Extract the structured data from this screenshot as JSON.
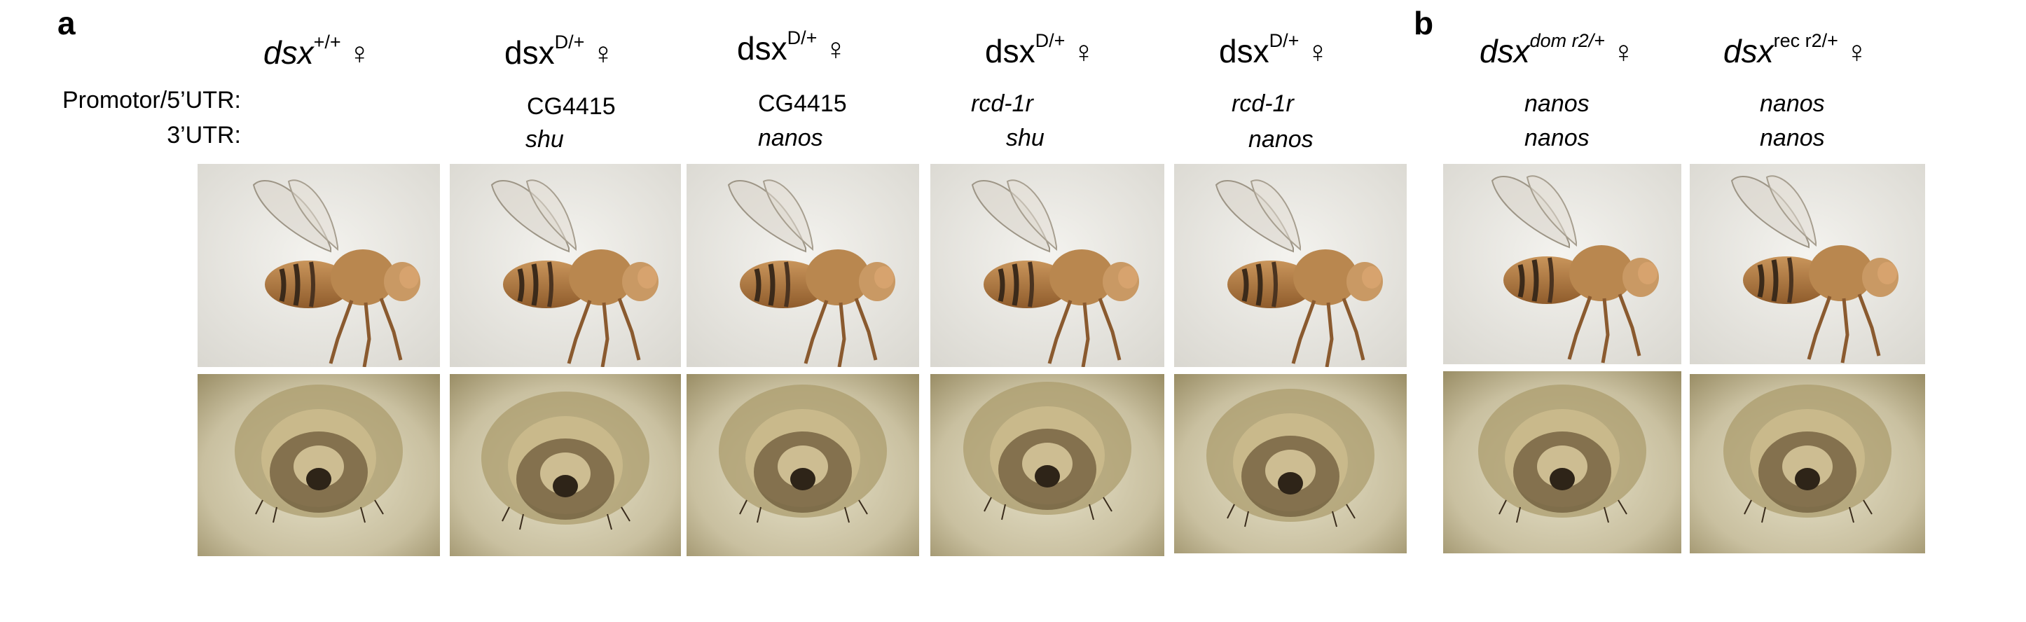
{
  "panel_labels": {
    "a": "a",
    "b": "b"
  },
  "row_labels": {
    "promoter": "Promotor/5’UTR:",
    "utr3": "3’UTR:"
  },
  "female_symbol": "♀",
  "columns": [
    {
      "gene": "dsx",
      "sup": "+/+",
      "promoter": "",
      "utr3": "",
      "italic_promoter": false
    },
    {
      "gene": "dsx",
      "sup": "D/+",
      "promoter": "CG4415",
      "utr3": "shu",
      "italic_promoter": false
    },
    {
      "gene": "dsx",
      "sup": "D/+",
      "promoter": "CG4415",
      "utr3": "nanos",
      "italic_promoter": false
    },
    {
      "gene": "dsx",
      "sup": "D/+",
      "promoter": "rcd-1r",
      "utr3": "shu",
      "italic_promoter": true
    },
    {
      "gene": "dsx",
      "sup": "D/+",
      "promoter": "rcd-1r",
      "utr3": "nanos",
      "italic_promoter": true
    },
    {
      "gene": "dsx",
      "sup": "dom r2/+",
      "promoter": "nanos",
      "utr3": "nanos",
      "italic_promoter": true
    },
    {
      "gene": "dsx",
      "sup": "rec r2/+",
      "promoter": "nanos",
      "utr3": "nanos",
      "italic_promoter": true
    }
  ],
  "photos": {
    "whole_fly": "whole fly, lateral view",
    "genitalia": "female terminalia, ventral close-up"
  }
}
